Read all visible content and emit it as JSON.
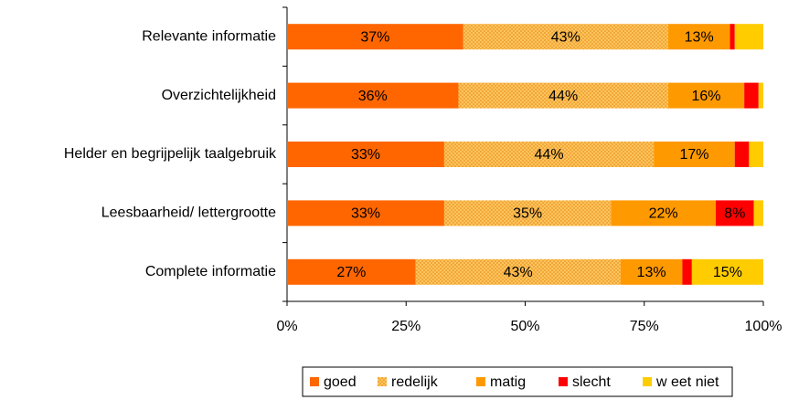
{
  "chart_data": {
    "type": "stacked-barh",
    "categories": [
      "Relevante informatie",
      "Overzichtelijkheid",
      "Helder en begrijpelijk taalgebruik",
      "Leesbaarheid/ lettergrootte",
      "Complete informatie"
    ],
    "series": [
      {
        "name": "goed",
        "color": "#ff6600",
        "values": [
          37,
          36,
          33,
          33,
          27
        ],
        "value_labels": [
          "37%",
          "36%",
          "33%",
          "33%",
          "27%"
        ]
      },
      {
        "name": "redelijk",
        "color": "#ffcc66",
        "pattern": "crosshatch",
        "values": [
          43,
          44,
          44,
          35,
          43
        ],
        "value_labels": [
          "43%",
          "44%",
          "44%",
          "35%",
          "43%"
        ]
      },
      {
        "name": "matig",
        "color": "#ff9900",
        "values": [
          13,
          16,
          17,
          22,
          13
        ],
        "value_labels": [
          "13%",
          "16%",
          "17%",
          "22%",
          "13%"
        ]
      },
      {
        "name": "slecht",
        "color": "#ff0000",
        "values": [
          1,
          3,
          3,
          8,
          2
        ],
        "value_labels": [
          null,
          null,
          null,
          "8%",
          null
        ]
      },
      {
        "name": "w eet niet",
        "color": "#ffcc00",
        "values": [
          6,
          1,
          3,
          2,
          15
        ],
        "value_labels": [
          null,
          null,
          null,
          null,
          "15%"
        ]
      }
    ],
    "xlim": [
      0,
      100
    ],
    "xticks": [
      {
        "value": 0,
        "label": "0%"
      },
      {
        "value": 25,
        "label": "25%"
      },
      {
        "value": 50,
        "label": "50%"
      },
      {
        "value": 75,
        "label": "75%"
      },
      {
        "value": 100,
        "label": "100%"
      }
    ],
    "legend": "bottom"
  }
}
